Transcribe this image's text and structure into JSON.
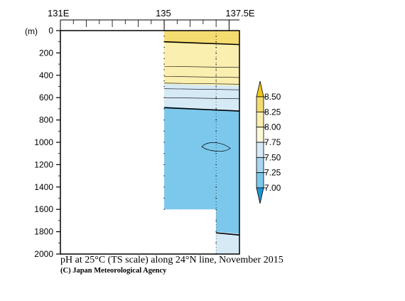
{
  "chart_data": {
    "type": "heatmap",
    "title": "pH at 25°C (TS scale) along 24°N line, November 2015",
    "credit": "(C) Japan Meteorological Agency",
    "ylabel": "(m)",
    "x_ticks": [
      "131E",
      "135",
      "137.5E"
    ],
    "x_tick_values": [
      131,
      135,
      137.5
    ],
    "xlim": [
      131,
      137.9
    ],
    "y_ticks": [
      "0",
      "200",
      "400",
      "600",
      "800",
      "1000",
      "1200",
      "1400",
      "1600",
      "1800",
      "2000"
    ],
    "y_tick_values": [
      0,
      200,
      400,
      600,
      800,
      1000,
      1200,
      1400,
      1600,
      1800,
      2000
    ],
    "ylim": [
      0,
      2000
    ],
    "y_inverted": true,
    "colorbar": {
      "levels": [
        "8.50",
        "8.25",
        "8.00",
        "7.75",
        "7.50",
        "7.25",
        "7.00"
      ],
      "level_values": [
        8.5,
        8.25,
        8.0,
        7.75,
        7.5,
        7.25,
        7.0
      ],
      "colors": [
        "#f0c81e",
        "#f5dc70",
        "#fbefb0",
        "#fdf8d8",
        "#d6eaf6",
        "#a8d6f0",
        "#7cc8ec",
        "#1e96d2"
      ],
      "extend": "both"
    },
    "stations_lon": [
      135,
      137
    ],
    "filled_regions": [
      {
        "range": "8.00-8.25",
        "color": "#f5dc70",
        "depth_top_m": [
          0,
          0
        ],
        "depth_bottom_m": [
          110,
          130
        ]
      },
      {
        "range": "7.75-8.00",
        "color": "#fbefb0",
        "depth_top_m": [
          110,
          130
        ],
        "depth_bottom_m": [
          480,
          495
        ]
      },
      {
        "range": "7.50-7.75",
        "color": "#d6eaf6",
        "depth_top_m": [
          480,
          495
        ],
        "depth_bottom_m": [
          680,
          720
        ]
      },
      {
        "range": "7.25-7.50",
        "color": "#7cc8ec",
        "depth_top_m": [
          680,
          720
        ],
        "depth_bottom_m": [
          1600,
          1800
        ]
      },
      {
        "range": "7.50-7.75",
        "color": "#d6eaf6",
        "depth_top_m": [
          1800,
          1820
        ],
        "depth_bottom_m": [
          2000,
          2000
        ]
      }
    ],
    "contours": [
      {
        "value": 8.0,
        "bold": true,
        "depth_m": [
          100,
          125
        ],
        "xlim": [
          135,
          137.9
        ]
      },
      {
        "value": 7.95,
        "bold": false,
        "depth_m": [
          320,
          330
        ],
        "xlim": [
          135,
          137.9
        ]
      },
      {
        "value": 7.9,
        "bold": false,
        "depth_m": [
          410,
          420
        ],
        "xlim": [
          135,
          137.9
        ]
      },
      {
        "value": 7.85,
        "bold": false,
        "depth_m": [
          470,
          480
        ],
        "xlim": [
          135,
          137.9
        ]
      },
      {
        "value": 7.7,
        "bold": false,
        "depth_m": [
          520,
          530
        ],
        "xlim": [
          135,
          137.9
        ]
      },
      {
        "value": 7.6,
        "bold": false,
        "depth_m": [
          600,
          610
        ],
        "xlim": [
          135,
          137.9
        ]
      },
      {
        "value": 7.5,
        "bold": true,
        "depth_m": [
          690,
          720
        ],
        "xlim": [
          135,
          137.9
        ]
      },
      {
        "value": 7.5,
        "bold": true,
        "depth_m": [
          1810,
          1830
        ],
        "xlim": [
          137,
          137.9
        ]
      }
    ],
    "closed_contour": {
      "center_lon": 137,
      "center_depth_m": 1040,
      "lon_halfwidth": 0.55,
      "depth_halfwidth_m": 45
    },
    "seafloor": [
      {
        "lon": [
          131,
          135
        ],
        "depth_m": 0
      },
      {
        "lon": [
          135,
          137
        ],
        "depth_m": 1600
      },
      {
        "lon": [
          137,
          137.9
        ],
        "depth_m": 2000
      }
    ]
  }
}
